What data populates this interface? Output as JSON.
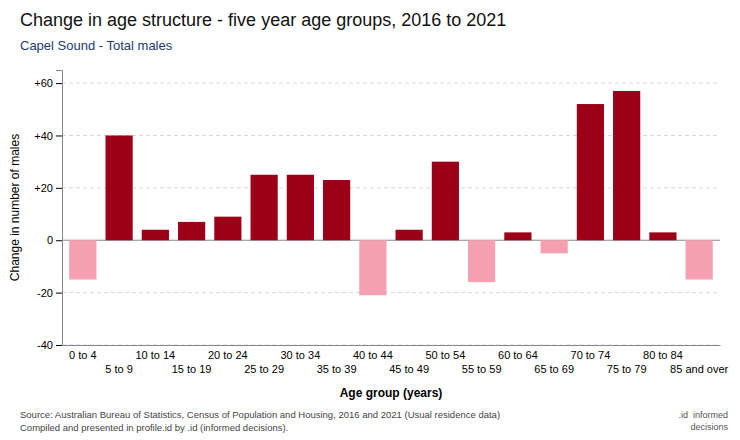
{
  "chart_data": {
    "type": "bar",
    "title": "Change in age structure - five year age groups, 2016 to 2021",
    "subtitle": "Capel Sound - Total males",
    "xlabel": "Age group (years)",
    "ylabel": "Change in number of males",
    "source": [
      "Source: Australian Bureau of Statistics, Census of Population and Housing, 2016 and 2021 (Usual residence data)",
      "Compiled and presented in profile.id by .id (informed decisions)."
    ],
    "annotations": [
      ".id  informed",
      "decisions"
    ],
    "categories": [
      "0 to 4",
      "5 to 9",
      "10 to 14",
      "15 to 19",
      "20 to 24",
      "25 to 29",
      "30 to 34",
      "35 to 39",
      "40 to 44",
      "45 to 49",
      "50 to 54",
      "55 to 59",
      "60 to 64",
      "65 to 69",
      "70 to 74",
      "75 to 79",
      "80 to 84",
      "85 and over"
    ],
    "values": [
      -15,
      40,
      4,
      7,
      9,
      25,
      25,
      23,
      -21,
      4,
      30,
      -16,
      3,
      -5,
      52,
      57,
      3,
      -15
    ],
    "colors": [
      "#f4a0b0",
      "#9b0018",
      "#9b0018",
      "#9b0018",
      "#9b0018",
      "#9b0018",
      "#9b0018",
      "#9b0018",
      "#f4a0b0",
      "#9b0018",
      "#9b0018",
      "#f4a0b0",
      "#9b0018",
      "#f4a0b0",
      "#9b0018",
      "#9b0018",
      "#9b0018",
      "#f4a0b0"
    ],
    "ylim": [
      -40,
      65
    ],
    "yticks": [
      -40,
      -20,
      0,
      {
        "value": 20,
        "label": "+20"
      },
      {
        "value": 40,
        "label": "+40"
      },
      {
        "value": 60,
        "label": "+60"
      }
    ],
    "grid": true
  }
}
